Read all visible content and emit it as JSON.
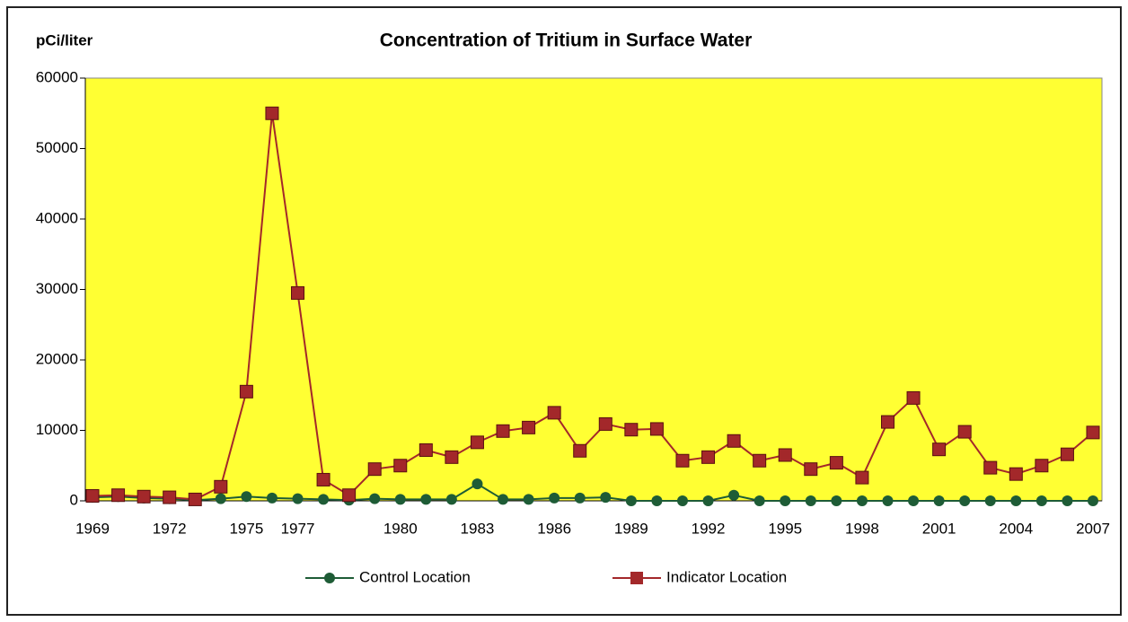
{
  "chart_data": {
    "type": "line",
    "title": "Concentration of Tritium in Surface Water",
    "y_label": "pCi/liter",
    "categories": [
      "1969",
      null,
      null,
      "1972",
      null,
      null,
      "1975",
      null,
      "1977",
      null,
      null,
      null,
      "1980",
      null,
      null,
      "1983",
      null,
      null,
      "1986",
      null,
      null,
      "1989",
      null,
      null,
      "1992",
      null,
      null,
      "1995",
      null,
      null,
      "1998",
      null,
      null,
      "2001",
      null,
      null,
      "2004",
      null,
      null,
      "2007"
    ],
    "series": [
      {
        "name": "Control Location",
        "color": "#1e5c36",
        "marker": "circle",
        "values": [
          500,
          600,
          400,
          300,
          100,
          300,
          600,
          400,
          300,
          200,
          100,
          300,
          200,
          200,
          200,
          2400,
          200,
          200,
          400,
          400,
          500,
          0,
          0,
          0,
          0,
          800,
          0,
          0,
          0,
          0,
          0,
          0,
          0,
          0,
          0,
          0,
          0,
          0,
          0,
          0
        ]
      },
      {
        "name": "Indicator Location",
        "color": "#a3282a",
        "marker": "square",
        "values": [
          700,
          800,
          600,
          500,
          200,
          2000,
          15500,
          55000,
          29500,
          3000,
          800,
          4500,
          5000,
          7200,
          6200,
          8300,
          9900,
          10400,
          12500,
          7100,
          10900,
          10100,
          10200,
          5700,
          6200,
          8500,
          5700,
          6500,
          4500,
          5400,
          3300,
          11200,
          14600,
          7300,
          9800,
          4700,
          3800,
          5000,
          6600,
          9700
        ]
      }
    ],
    "ylim": [
      0,
      60000
    ],
    "yticks": [
      0,
      10000,
      20000,
      30000,
      40000,
      50000,
      60000
    ],
    "grid": false,
    "legend": "bottom",
    "plot_background": "#ffff33"
  }
}
